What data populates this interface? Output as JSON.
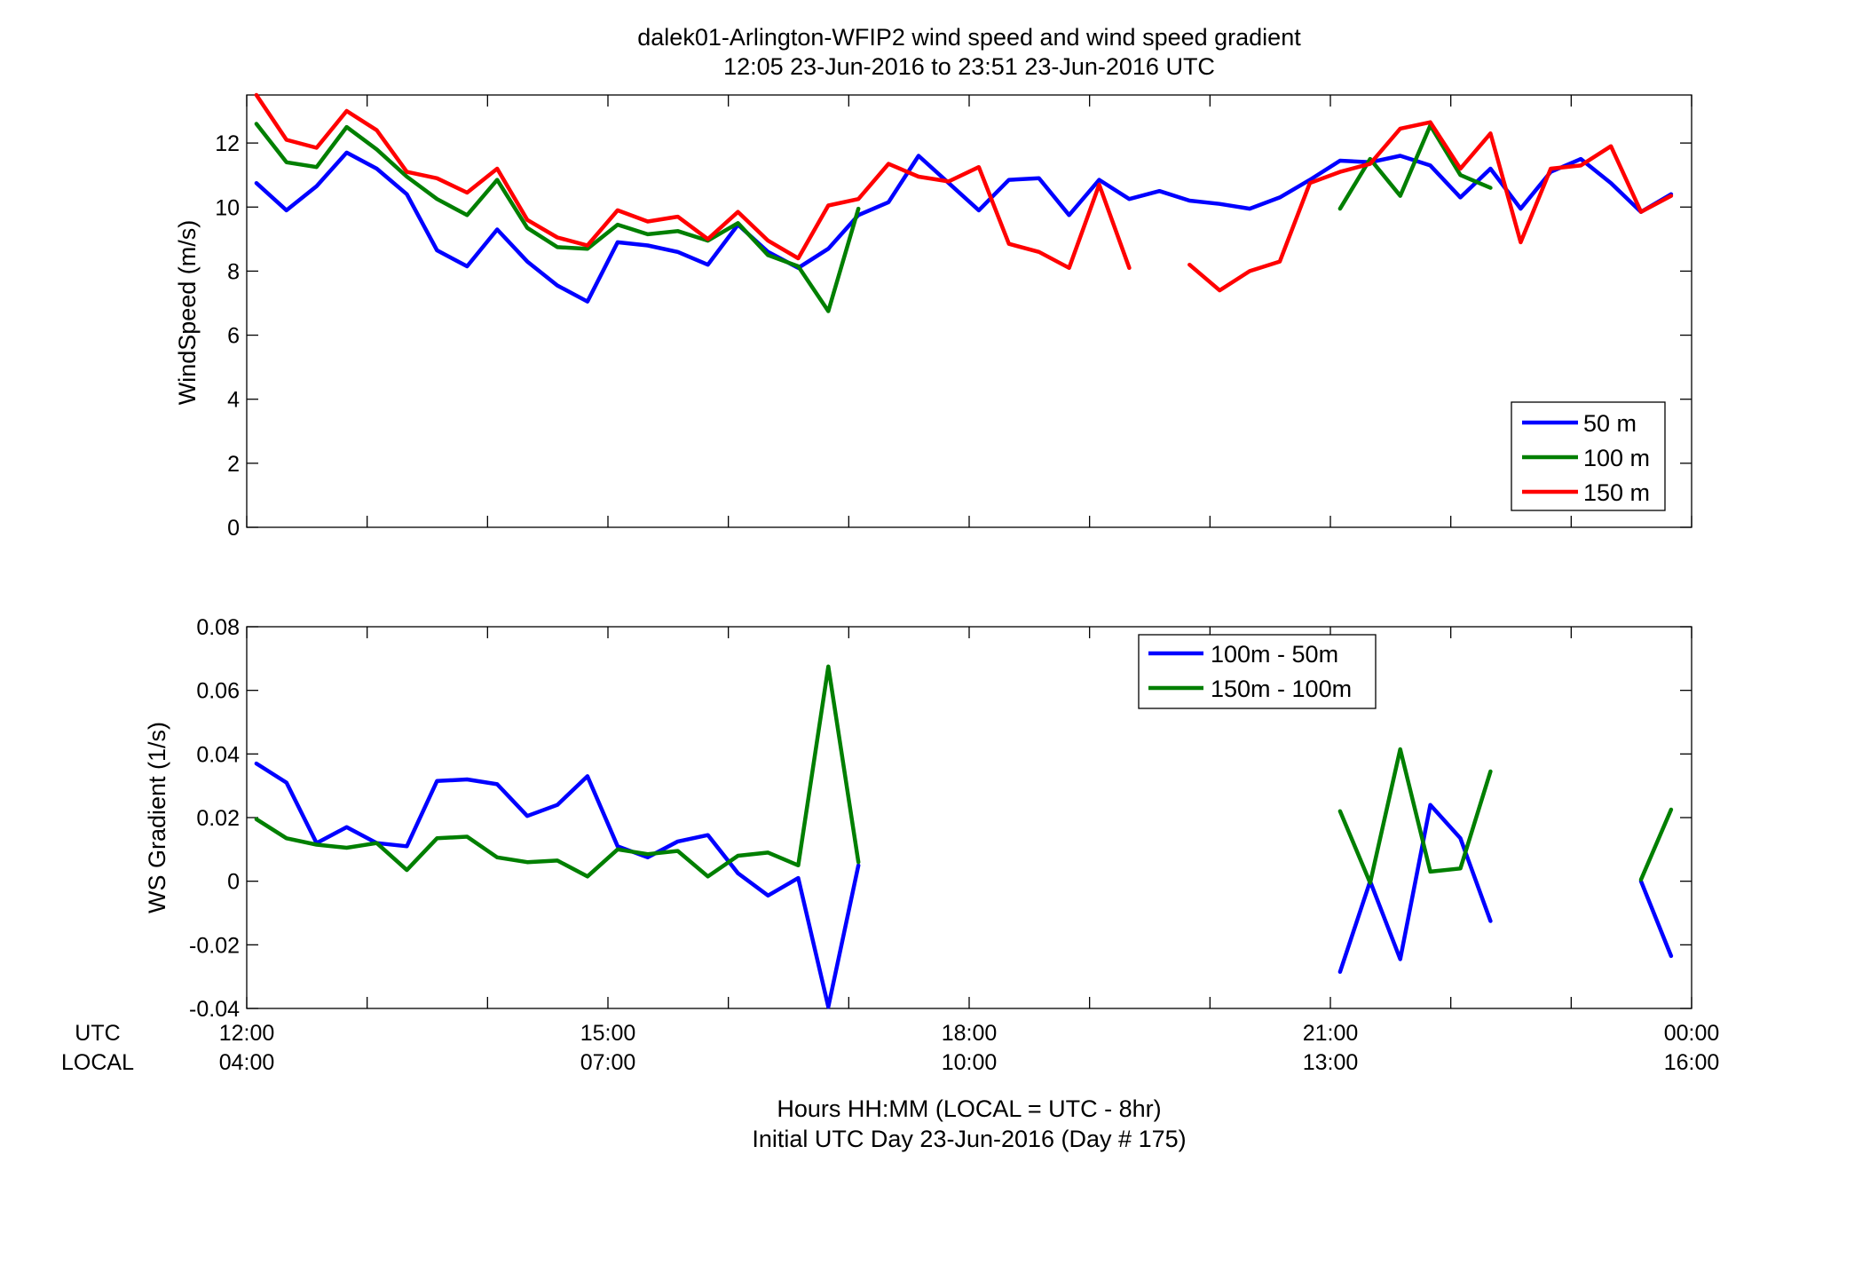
{
  "title_line1": "dalek01-Arlington-WFIP2  wind speed and wind speed gradient",
  "title_line2": "12:05 23-Jun-2016 to 23:51 23-Jun-2016  UTC",
  "time_row_labels": {
    "utc": "UTC",
    "local": "LOCAL"
  },
  "xlabel_line1": "Hours HH:MM  (LOCAL = UTC - 8hr)",
  "xlabel_line2": "Initial UTC Day 23-Jun-2016 (Day # 175)",
  "colors": {
    "blue": "#0000ff",
    "green": "#007f00",
    "red": "#ff0000"
  },
  "chart_data": [
    {
      "type": "line",
      "title": "dalek01-Arlington-WFIP2  wind speed and wind speed gradient",
      "subtitle": "12:05 23-Jun-2016 to 23:51 23-Jun-2016  UTC",
      "xlabel": "",
      "ylabel": "WindSpeed (m/s)",
      "xlim": [
        12,
        24
      ],
      "ylim": [
        0,
        13.5
      ],
      "yticks": [
        0,
        2,
        4,
        6,
        8,
        10,
        12
      ],
      "xticks": [
        12,
        15,
        18,
        21,
        24
      ],
      "grid": false,
      "legend_position": "bottom-right",
      "series": [
        {
          "name": "50 m",
          "color": "#0000ff",
          "points": [
            [
              12.08,
              10.75
            ],
            [
              12.33,
              9.9
            ],
            [
              12.58,
              10.65
            ],
            [
              12.83,
              11.7
            ],
            [
              13.08,
              11.2
            ],
            [
              13.33,
              10.4
            ],
            [
              13.58,
              8.65
            ],
            [
              13.83,
              8.15
            ],
            [
              14.08,
              9.3
            ],
            [
              14.33,
              8.3
            ],
            [
              14.58,
              7.55
            ],
            [
              14.83,
              7.05
            ],
            [
              15.08,
              8.9
            ],
            [
              15.33,
              8.8
            ],
            [
              15.58,
              8.6
            ],
            [
              15.83,
              8.2
            ],
            [
              16.08,
              9.45
            ],
            [
              16.33,
              8.6
            ],
            [
              16.58,
              8.1
            ],
            [
              16.83,
              8.7
            ],
            [
              17.08,
              9.75
            ],
            [
              17.33,
              10.15
            ],
            [
              17.58,
              11.6
            ],
            [
              17.83,
              10.75
            ],
            [
              18.08,
              9.9
            ],
            [
              18.33,
              10.85
            ],
            [
              18.58,
              10.9
            ],
            [
              18.83,
              9.75
            ],
            [
              19.08,
              10.85
            ],
            [
              19.33,
              10.25
            ],
            [
              19.58,
              10.5
            ],
            [
              19.83,
              10.2
            ],
            [
              20.08,
              10.1
            ],
            [
              20.33,
              9.95
            ],
            [
              20.58,
              10.3
            ],
            [
              20.83,
              10.85
            ],
            [
              21.08,
              11.45
            ],
            [
              21.33,
              11.4
            ],
            [
              21.58,
              11.6
            ],
            [
              21.83,
              11.3
            ],
            [
              22.08,
              10.3
            ],
            [
              22.33,
              11.2
            ],
            [
              22.58,
              9.95
            ],
            [
              22.83,
              11.1
            ],
            [
              23.08,
              11.5
            ],
            [
              23.33,
              10.75
            ],
            [
              23.58,
              9.85
            ],
            [
              23.83,
              10.4
            ]
          ]
        },
        {
          "name": "100 m",
          "color": "#007f00",
          "points": [
            [
              12.08,
              12.6
            ],
            [
              12.33,
              11.4
            ],
            [
              12.58,
              11.25
            ],
            [
              12.83,
              12.5
            ],
            [
              13.08,
              11.8
            ],
            [
              13.33,
              10.95
            ],
            [
              13.58,
              10.25
            ],
            [
              13.83,
              9.75
            ],
            [
              14.08,
              10.85
            ],
            [
              14.33,
              9.35
            ],
            [
              14.58,
              8.75
            ],
            [
              14.83,
              8.7
            ],
            [
              15.08,
              9.45
            ],
            [
              15.33,
              9.15
            ],
            [
              15.58,
              9.25
            ],
            [
              15.83,
              8.95
            ],
            [
              16.08,
              9.5
            ],
            [
              16.33,
              8.5
            ],
            [
              16.58,
              8.15
            ],
            [
              16.83,
              6.75
            ],
            [
              17.08,
              9.95
            ],
            null,
            [
              21.08,
              9.95
            ],
            [
              21.33,
              11.5
            ],
            [
              21.58,
              10.35
            ],
            [
              21.83,
              12.55
            ],
            [
              22.08,
              11.0
            ],
            [
              22.33,
              10.6
            ]
          ]
        },
        {
          "name": "150 m",
          "color": "#ff0000",
          "points": [
            [
              12.08,
              13.5
            ],
            [
              12.33,
              12.1
            ],
            [
              12.58,
              11.85
            ],
            [
              12.83,
              13.0
            ],
            [
              13.08,
              12.4
            ],
            [
              13.33,
              11.1
            ],
            [
              13.58,
              10.9
            ],
            [
              13.83,
              10.45
            ],
            [
              14.08,
              11.2
            ],
            [
              14.33,
              9.6
            ],
            [
              14.58,
              9.05
            ],
            [
              14.83,
              8.8
            ],
            [
              15.08,
              9.9
            ],
            [
              15.33,
              9.55
            ],
            [
              15.58,
              9.7
            ],
            [
              15.83,
              9.0
            ],
            [
              16.08,
              9.85
            ],
            [
              16.33,
              8.95
            ],
            [
              16.58,
              8.4
            ],
            [
              16.83,
              10.05
            ],
            [
              17.08,
              10.25
            ],
            [
              17.33,
              11.35
            ],
            [
              17.58,
              10.95
            ],
            [
              17.83,
              10.8
            ],
            [
              18.08,
              11.25
            ],
            [
              18.33,
              8.85
            ],
            [
              18.58,
              8.6
            ],
            [
              18.83,
              8.1
            ],
            [
              19.08,
              10.7
            ],
            [
              19.33,
              8.1
            ],
            null,
            [
              19.83,
              8.2
            ],
            [
              20.08,
              7.4
            ],
            [
              20.33,
              8.0
            ],
            [
              20.58,
              8.3
            ],
            [
              20.83,
              10.75
            ],
            [
              21.08,
              11.1
            ],
            [
              21.33,
              11.35
            ],
            [
              21.58,
              12.45
            ],
            [
              21.83,
              12.65
            ],
            [
              22.08,
              11.2
            ],
            [
              22.33,
              12.3
            ],
            [
              22.58,
              8.9
            ],
            [
              22.83,
              11.2
            ],
            [
              23.08,
              11.3
            ],
            [
              23.33,
              11.9
            ],
            [
              23.58,
              9.85
            ],
            [
              23.83,
              10.35
            ]
          ]
        }
      ]
    },
    {
      "type": "line",
      "title": "",
      "xlabel": "Hours HH:MM  (LOCAL = UTC - 8hr)",
      "ylabel": "WS Gradient (1/s)",
      "xlim": [
        12,
        24
      ],
      "ylim": [
        -0.04,
        0.08
      ],
      "yticks": [
        -0.04,
        -0.02,
        0,
        0.02,
        0.04,
        0.06,
        0.08
      ],
      "ytick_labels": [
        "-0.04",
        "-0.02",
        "0",
        "0.02",
        "0.04",
        "0.06",
        "0.08"
      ],
      "xticks": [
        12,
        15,
        18,
        21,
        24
      ],
      "xtick_labels_utc": [
        "12:00",
        "15:00",
        "18:00",
        "21:00",
        "00:00"
      ],
      "xtick_labels_local": [
        "04:00",
        "07:00",
        "10:00",
        "13:00",
        "16:00"
      ],
      "grid": false,
      "legend_position": "top-center",
      "series": [
        {
          "name": "100m - 50m",
          "color": "#0000ff",
          "points": [
            [
              12.08,
              0.037
            ],
            [
              12.33,
              0.031
            ],
            [
              12.58,
              0.012
            ],
            [
              12.83,
              0.017
            ],
            [
              13.08,
              0.012
            ],
            [
              13.33,
              0.011
            ],
            [
              13.58,
              0.0315
            ],
            [
              13.83,
              0.032
            ],
            [
              14.08,
              0.0305
            ],
            [
              14.33,
              0.0205
            ],
            [
              14.58,
              0.024
            ],
            [
              14.83,
              0.033
            ],
            [
              15.08,
              0.011
            ],
            [
              15.33,
              0.0075
            ],
            [
              15.58,
              0.0125
            ],
            [
              15.83,
              0.0145
            ],
            [
              16.08,
              0.0025
            ],
            [
              16.33,
              -0.0045
            ],
            [
              16.58,
              0.001
            ],
            [
              16.83,
              -0.0395
            ],
            [
              17.08,
              0.005
            ],
            null,
            [
              21.08,
              -0.0285
            ],
            [
              21.33,
              0.0
            ],
            [
              21.58,
              -0.0245
            ],
            [
              21.83,
              0.024
            ],
            [
              22.08,
              0.0135
            ],
            [
              22.33,
              -0.0125
            ],
            null,
            [
              23.58,
              0.0
            ],
            [
              23.83,
              -0.0235
            ]
          ]
        },
        {
          "name": "150m - 100m",
          "color": "#007f00",
          "points": [
            [
              12.08,
              0.0195
            ],
            [
              12.33,
              0.0135
            ],
            [
              12.58,
              0.0115
            ],
            [
              12.83,
              0.0105
            ],
            [
              13.08,
              0.012
            ],
            [
              13.33,
              0.0035
            ],
            [
              13.58,
              0.0135
            ],
            [
              13.83,
              0.014
            ],
            [
              14.08,
              0.0075
            ],
            [
              14.33,
              0.006
            ],
            [
              14.58,
              0.0065
            ],
            [
              14.83,
              0.0015
            ],
            [
              15.08,
              0.01
            ],
            [
              15.33,
              0.0085
            ],
            [
              15.58,
              0.0095
            ],
            [
              15.83,
              0.0015
            ],
            [
              16.08,
              0.008
            ],
            [
              16.33,
              0.009
            ],
            [
              16.58,
              0.005
            ],
            [
              16.83,
              0.0675
            ],
            [
              17.08,
              0.006
            ],
            null,
            [
              21.08,
              0.022
            ],
            [
              21.33,
              -0.0005
            ],
            [
              21.58,
              0.0415
            ],
            [
              21.83,
              0.003
            ],
            [
              22.08,
              0.004
            ],
            [
              22.33,
              0.0345
            ],
            null,
            [
              23.58,
              0.0005
            ],
            [
              23.83,
              0.0225
            ]
          ]
        }
      ]
    }
  ]
}
